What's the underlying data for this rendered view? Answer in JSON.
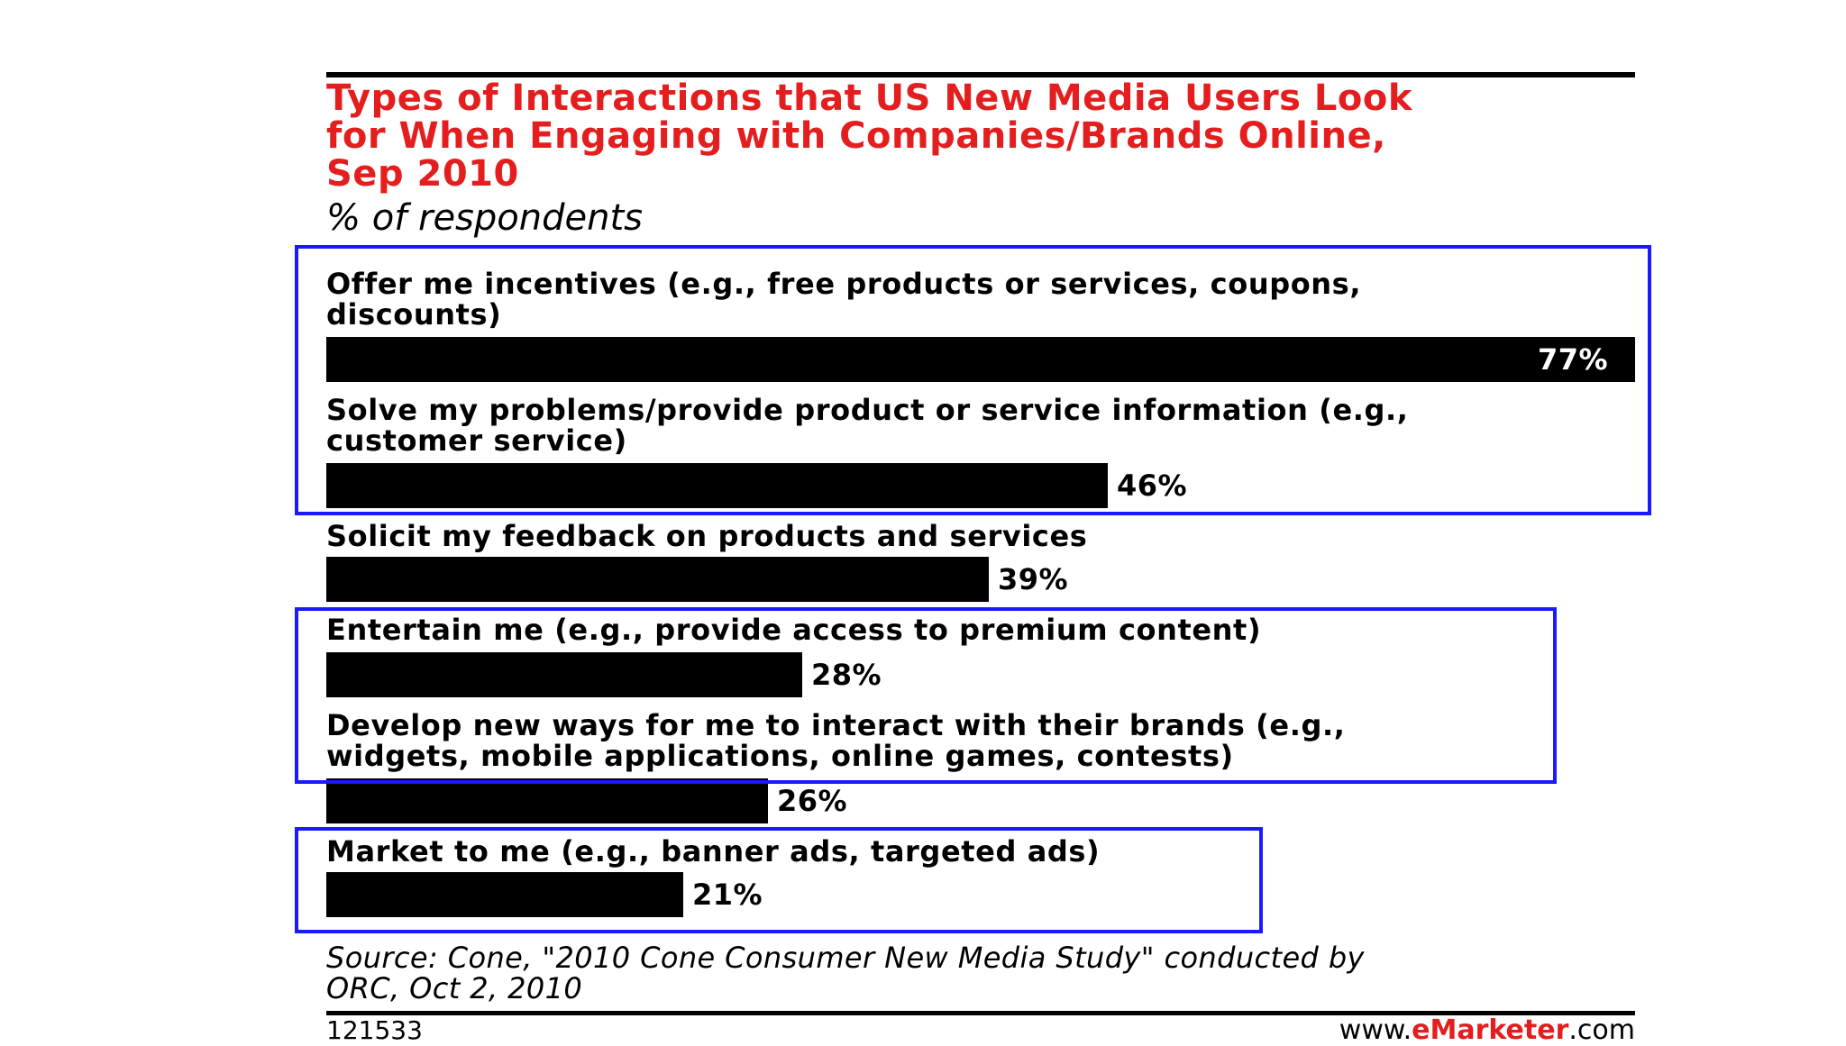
{
  "chart_data": {
    "type": "bar",
    "orientation": "horizontal",
    "title_lines": [
      "Types of Interactions that US New Media Users Look",
      "for When Engaging with Companies/Brands Online,",
      "Sep 2010"
    ],
    "subtitle": "% of respondents",
    "categories": [
      [
        "Offer me incentives (e.g., free products or services, coupons,",
        "discounts)"
      ],
      [
        "Solve my problems/provide product or service information (e.g.,",
        "customer service)"
      ],
      [
        "Solicit my feedback on products and services"
      ],
      [
        "Entertain me (e.g., provide access to premium content)"
      ],
      [
        "Develop new ways for me to interact with their brands (e.g.,",
        "widgets, mobile applications, online games, contests)"
      ],
      [
        "Market to me (e.g., banner ads, targeted ads)"
      ]
    ],
    "values": [
      77,
      46,
      39,
      28,
      26,
      21
    ],
    "value_labels": [
      "77%",
      "46%",
      "39%",
      "28%",
      "26%",
      "21%"
    ],
    "xlim": [
      0,
      77
    ],
    "highlight_groups": [
      [
        0,
        1
      ],
      [
        3,
        4
      ],
      [
        5
      ]
    ],
    "highlight_color": "#1a1aff",
    "bar_color": "#000000",
    "title_color": "#e41e1e"
  },
  "source_lines": [
    "Source: Cone, \"2010 Cone Consumer New Media Study\" conducted by",
    "ORC, Oct 2, 2010"
  ],
  "footer": {
    "id": "121533",
    "brand_prefix": "www.",
    "brand_mark": "eMarketer",
    "brand_suffix": ".com"
  }
}
